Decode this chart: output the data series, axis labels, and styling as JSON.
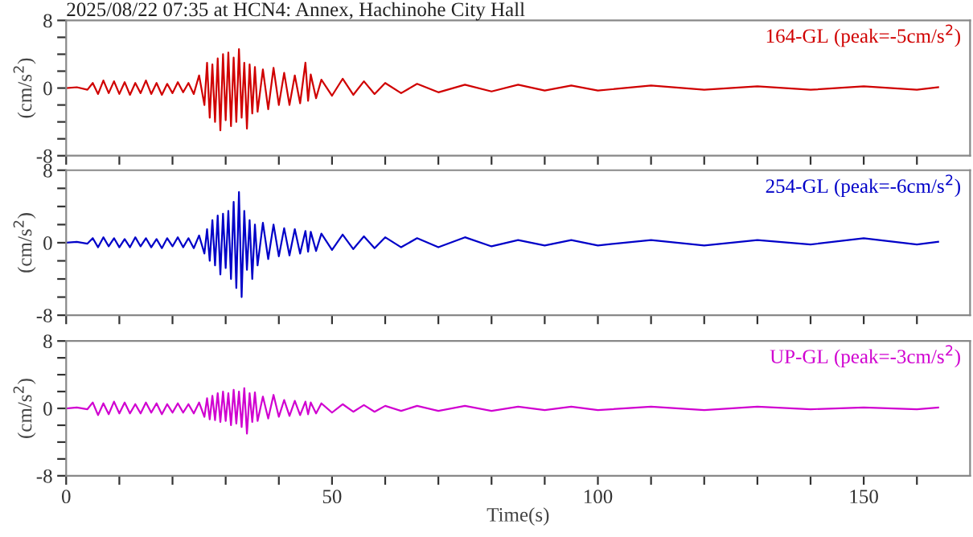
{
  "chart_data": [
    {
      "type": "line",
      "title": "2025/08/22 07:35 at HCN4: Annex, Hachinohe City Hall",
      "ylabel": "(cm/s$^{2}$)",
      "xlim": [
        0,
        170
      ],
      "ylim": [
        -8,
        8
      ],
      "xticks": [
        0,
        {
          "value": 10,
          "label": null
        },
        {
          "value": 20,
          "label": null
        },
        {
          "value": 30,
          "label": null
        },
        {
          "value": 40,
          "label": null
        },
        50,
        {
          "value": 60,
          "label": null
        },
        {
          "value": 70,
          "label": null
        },
        {
          "value": 80,
          "label": null
        },
        {
          "value": 90,
          "label": null
        },
        100,
        {
          "value": 110,
          "label": null
        },
        {
          "value": 120,
          "label": null
        },
        {
          "value": 130,
          "label": null
        },
        {
          "value": 140,
          "label": null
        },
        150,
        {
          "value": 160,
          "label": null
        }
      ],
      "yticks": [
        -8,
        {
          "value": -6,
          "label": null
        },
        {
          "value": -4,
          "label": null
        },
        {
          "value": -2,
          "label": null
        },
        0,
        {
          "value": 2,
          "label": null
        },
        {
          "value": 4,
          "label": null
        },
        {
          "value": 6,
          "label": null
        },
        8
      ],
      "tick_labels": "y",
      "grid": false,
      "legend": "top right",
      "x": [
        0,
        2,
        4,
        5,
        6,
        7,
        8,
        9,
        10,
        11,
        12,
        13,
        14,
        15,
        16,
        17,
        18,
        19,
        20,
        21,
        22,
        23,
        24,
        25,
        26,
        26.5,
        27,
        27.5,
        28,
        28.5,
        29,
        29.5,
        30,
        30.5,
        31,
        31.5,
        32,
        32.5,
        33,
        33.5,
        34,
        34.5,
        35,
        35.5,
        36,
        37,
        38,
        39,
        40,
        41,
        42,
        43,
        44,
        45,
        45.5,
        46,
        47,
        48,
        50,
        52,
        54,
        56,
        58,
        60,
        63,
        66,
        70,
        75,
        80,
        85,
        90,
        95,
        100,
        110,
        120,
        130,
        140,
        150,
        160,
        164
      ],
      "series": [
        {
          "name": "164-GL (peak=-5cm/s$^{2}$)",
          "color": "#d00000",
          "values": [
            0,
            0.1,
            -0.2,
            0.6,
            -0.7,
            0.9,
            -0.6,
            0.8,
            -0.7,
            0.7,
            -0.8,
            0.6,
            -0.6,
            0.9,
            -0.7,
            0.6,
            -0.8,
            0.5,
            -0.6,
            0.7,
            -0.5,
            0.6,
            -0.7,
            1.5,
            -2.0,
            3.0,
            -3.5,
            2.8,
            -4.0,
            3.5,
            -5.0,
            4.0,
            -3.8,
            4.2,
            -4.5,
            3.6,
            -4.0,
            4.6,
            -3.5,
            3.0,
            -4.8,
            2.8,
            -3.0,
            2.5,
            -2.8,
            2.2,
            -2.5,
            2.4,
            -2.0,
            1.8,
            -2.0,
            1.5,
            -1.8,
            3.0,
            -1.5,
            1.6,
            -1.2,
            1.0,
            -0.9,
            1.1,
            -0.8,
            0.8,
            -0.7,
            0.6,
            -0.6,
            0.5,
            -0.5,
            0.4,
            -0.4,
            0.4,
            -0.3,
            0.3,
            -0.3,
            0.3,
            -0.2,
            0.2,
            -0.2,
            0.2,
            -0.2,
            0.1
          ]
        }
      ]
    },
    {
      "type": "line",
      "ylabel": "(cm/s$^{2}$)",
      "xlim": [
        0,
        170
      ],
      "ylim": [
        -8,
        8
      ],
      "xticks": [
        0,
        {
          "value": 10,
          "label": null
        },
        {
          "value": 20,
          "label": null
        },
        {
          "value": 30,
          "label": null
        },
        {
          "value": 40,
          "label": null
        },
        50,
        {
          "value": 60,
          "label": null
        },
        {
          "value": 70,
          "label": null
        },
        {
          "value": 80,
          "label": null
        },
        {
          "value": 90,
          "label": null
        },
        100,
        {
          "value": 110,
          "label": null
        },
        {
          "value": 120,
          "label": null
        },
        {
          "value": 130,
          "label": null
        },
        {
          "value": 140,
          "label": null
        },
        150,
        {
          "value": 160,
          "label": null
        }
      ],
      "yticks": [
        -8,
        {
          "value": -6,
          "label": null
        },
        {
          "value": -4,
          "label": null
        },
        {
          "value": -2,
          "label": null
        },
        0,
        {
          "value": 2,
          "label": null
        },
        {
          "value": 4,
          "label": null
        },
        {
          "value": 6,
          "label": null
        },
        8
      ],
      "tick_labels": "y",
      "grid": false,
      "legend": "top right",
      "x": [
        0,
        2,
        4,
        5,
        6,
        7,
        8,
        9,
        10,
        11,
        12,
        13,
        14,
        15,
        16,
        17,
        18,
        19,
        20,
        21,
        22,
        23,
        24,
        25,
        26,
        26.5,
        27,
        27.5,
        28,
        28.5,
        29,
        29.5,
        30,
        30.5,
        31,
        31.5,
        32,
        32.5,
        33,
        33.5,
        34,
        34.5,
        35,
        35.5,
        36,
        37,
        38,
        39,
        40,
        41,
        42,
        43,
        44,
        45,
        45.5,
        46,
        47,
        48,
        50,
        52,
        54,
        56,
        58,
        60,
        63,
        66,
        70,
        75,
        80,
        85,
        90,
        95,
        100,
        110,
        120,
        130,
        140,
        150,
        160,
        164
      ],
      "series": [
        {
          "name": "254-GL (peak=-6cm/s$^{2}$)",
          "color": "#0000c8",
          "values": [
            0,
            0.1,
            -0.1,
            0.5,
            -0.5,
            0.6,
            -0.4,
            0.5,
            -0.5,
            0.4,
            -0.5,
            0.6,
            -0.4,
            0.5,
            -0.5,
            0.4,
            -0.6,
            0.5,
            -0.4,
            0.6,
            -0.5,
            0.5,
            -0.6,
            0.8,
            -1.2,
            1.5,
            -2.0,
            2.5,
            -2.5,
            3.0,
            -3.5,
            3.2,
            -2.8,
            3.5,
            -4.0,
            4.5,
            -5.0,
            5.6,
            -6.0,
            3.5,
            -3.0,
            2.5,
            -4.0,
            2.0,
            -2.5,
            2.2,
            -1.8,
            2.0,
            -1.5,
            1.6,
            -1.4,
            1.5,
            -1.2,
            1.3,
            -1.0,
            1.2,
            -0.9,
            1.0,
            -0.8,
            0.9,
            -0.7,
            0.7,
            -0.6,
            0.6,
            -0.5,
            0.5,
            -0.5,
            0.6,
            -0.4,
            0.3,
            -0.3,
            0.3,
            -0.3,
            0.3,
            -0.3,
            0.3,
            -0.2,
            0.5,
            -0.2,
            0.1
          ]
        }
      ]
    },
    {
      "type": "line",
      "xlabel": "Time(s)",
      "ylabel": "(cm/s$^{2}$)",
      "xlim": [
        0,
        170
      ],
      "ylim": [
        -8,
        8
      ],
      "xticks": [
        0,
        {
          "value": 10,
          "label": null
        },
        {
          "value": 20,
          "label": null
        },
        {
          "value": 30,
          "label": null
        },
        {
          "value": 40,
          "label": null
        },
        50,
        {
          "value": 60,
          "label": null
        },
        {
          "value": 70,
          "label": null
        },
        {
          "value": 80,
          "label": null
        },
        {
          "value": 90,
          "label": null
        },
        100,
        {
          "value": 110,
          "label": null
        },
        {
          "value": 120,
          "label": null
        },
        {
          "value": 130,
          "label": null
        },
        {
          "value": 140,
          "label": null
        },
        150,
        {
          "value": 160,
          "label": null
        }
      ],
      "yticks": [
        -8,
        {
          "value": -6,
          "label": null
        },
        {
          "value": -4,
          "label": null
        },
        {
          "value": -2,
          "label": null
        },
        0,
        {
          "value": 2,
          "label": null
        },
        {
          "value": 4,
          "label": null
        },
        {
          "value": 6,
          "label": null
        },
        8
      ],
      "grid": false,
      "legend": "top right",
      "x": [
        0,
        2,
        4,
        5,
        6,
        7,
        8,
        9,
        10,
        11,
        12,
        13,
        14,
        15,
        16,
        17,
        18,
        19,
        20,
        21,
        22,
        23,
        24,
        25,
        26,
        26.5,
        27,
        27.5,
        28,
        28.5,
        29,
        29.5,
        30,
        30.5,
        31,
        31.5,
        32,
        32.5,
        33,
        33.5,
        34,
        34.5,
        35,
        35.5,
        36,
        37,
        38,
        39,
        40,
        41,
        42,
        43,
        44,
        45,
        45.5,
        46,
        47,
        48,
        50,
        52,
        54,
        56,
        58,
        60,
        63,
        66,
        70,
        75,
        80,
        85,
        90,
        95,
        100,
        110,
        120,
        130,
        140,
        150,
        160,
        164
      ],
      "series": [
        {
          "name": "UP-GL (peak=-3cm/s$^{2}$)",
          "color": "#d000d0",
          "values": [
            0,
            0.1,
            -0.1,
            0.7,
            -0.8,
            0.6,
            -0.7,
            0.8,
            -0.6,
            0.7,
            -0.6,
            0.5,
            -0.6,
            0.7,
            -0.5,
            0.6,
            -0.7,
            0.5,
            -0.5,
            0.6,
            -0.5,
            0.5,
            -0.6,
            0.7,
            -1.0,
            1.2,
            -1.3,
            1.5,
            -1.4,
            1.8,
            -1.6,
            2.0,
            -1.5,
            1.8,
            -2.0,
            2.2,
            -1.8,
            2.0,
            -2.2,
            2.4,
            -3.0,
            1.8,
            -1.6,
            1.9,
            -1.5,
            1.4,
            -1.2,
            1.6,
            -1.0,
            1.0,
            -0.9,
            0.9,
            -0.8,
            0.8,
            -0.7,
            0.7,
            -0.6,
            0.6,
            -0.5,
            0.5,
            -0.4,
            0.4,
            -0.4,
            0.3,
            -0.3,
            0.3,
            -0.3,
            0.3,
            -0.3,
            0.2,
            -0.2,
            0.2,
            -0.2,
            0.2,
            -0.2,
            0.2,
            -0.1,
            0.1,
            -0.1,
            0.1
          ]
        }
      ]
    }
  ]
}
